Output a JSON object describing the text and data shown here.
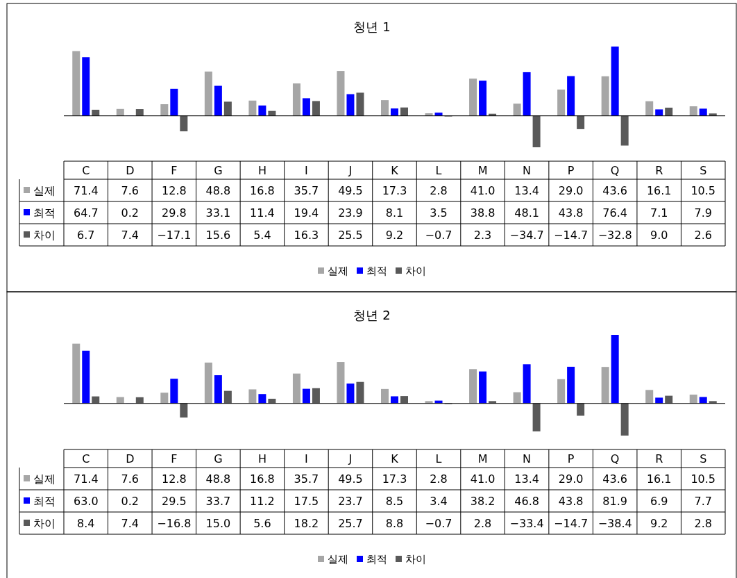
{
  "chart_data": [
    {
      "type": "bar",
      "title": "청년 1",
      "categories": [
        "C",
        "D",
        "F",
        "G",
        "H",
        "I",
        "J",
        "K",
        "L",
        "M",
        "N",
        "P",
        "Q",
        "R",
        "S"
      ],
      "legend": "bottom",
      "series": [
        {
          "name": "실제",
          "color": "#a6a6a6",
          "values": [
            71.4,
            7.6,
            12.8,
            48.8,
            16.8,
            35.7,
            49.5,
            17.3,
            2.8,
            41.0,
            13.4,
            29.0,
            43.6,
            16.1,
            10.5
          ],
          "value_labels": [
            "71.4",
            "7.6",
            "12.8",
            "48.8",
            "16.8",
            "35.7",
            "49.5",
            "17.3",
            "2.8",
            "41.0",
            "13.4",
            "29.0",
            "43.6",
            "16.1",
            "10.5"
          ]
        },
        {
          "name": "최적",
          "color": "#0000ff",
          "values": [
            64.7,
            0.2,
            29.8,
            33.1,
            11.4,
            19.4,
            23.9,
            8.1,
            3.5,
            38.8,
            48.1,
            43.8,
            76.4,
            7.1,
            7.9
          ],
          "value_labels": [
            "64.7",
            "0.2",
            "29.8",
            "33.1",
            "11.4",
            "19.4",
            "23.9",
            "8.1",
            "3.5",
            "38.8",
            "48.1",
            "43.8",
            "76.4",
            "7.1",
            "7.9"
          ]
        },
        {
          "name": "차이",
          "color": "#595959",
          "values": [
            6.7,
            7.4,
            -17.1,
            15.6,
            5.4,
            16.3,
            25.5,
            9.2,
            -0.7,
            2.3,
            -34.7,
            -14.7,
            -32.8,
            9.0,
            2.6
          ],
          "value_labels": [
            "6.7",
            "7.4",
            "−17.1",
            "15.6",
            "5.4",
            "16.3",
            "25.5",
            "9.2",
            "−0.7",
            "2.3",
            "−34.7",
            "−14.7",
            "−32.8",
            "9.0",
            "2.6"
          ]
        }
      ]
    },
    {
      "type": "bar",
      "title": "청년 2",
      "categories": [
        "C",
        "D",
        "F",
        "G",
        "H",
        "I",
        "J",
        "K",
        "L",
        "M",
        "N",
        "P",
        "Q",
        "R",
        "S"
      ],
      "legend": "bottom",
      "series": [
        {
          "name": "실제",
          "color": "#a6a6a6",
          "values": [
            71.4,
            7.6,
            12.8,
            48.8,
            16.8,
            35.7,
            49.5,
            17.3,
            2.8,
            41.0,
            13.4,
            29.0,
            43.6,
            16.1,
            10.5
          ],
          "value_labels": [
            "71.4",
            "7.6",
            "12.8",
            "48.8",
            "16.8",
            "35.7",
            "49.5",
            "17.3",
            "2.8",
            "41.0",
            "13.4",
            "29.0",
            "43.6",
            "16.1",
            "10.5"
          ]
        },
        {
          "name": "최적",
          "color": "#0000ff",
          "values": [
            63.0,
            0.2,
            29.5,
            33.7,
            11.2,
            17.5,
            23.7,
            8.5,
            3.4,
            38.2,
            46.8,
            43.8,
            81.9,
            6.9,
            7.7
          ],
          "value_labels": [
            "63.0",
            "0.2",
            "29.5",
            "33.7",
            "11.2",
            "17.5",
            "23.7",
            "8.5",
            "3.4",
            "38.2",
            "46.8",
            "43.8",
            "81.9",
            "6.9",
            "7.7"
          ]
        },
        {
          "name": "차이",
          "color": "#595959",
          "values": [
            8.4,
            7.4,
            -16.8,
            15.0,
            5.6,
            18.2,
            25.7,
            8.8,
            -0.7,
            2.8,
            -33.4,
            -14.7,
            -38.4,
            9.2,
            2.8
          ],
          "value_labels": [
            "8.4",
            "7.4",
            "−16.8",
            "15.0",
            "5.6",
            "18.2",
            "25.7",
            "8.8",
            "−0.7",
            "2.8",
            "−33.4",
            "−14.7",
            "−38.4",
            "9.2",
            "2.8"
          ]
        }
      ]
    }
  ]
}
